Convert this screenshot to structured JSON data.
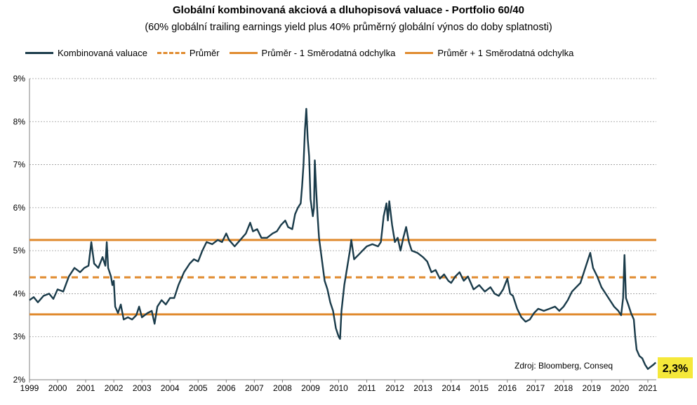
{
  "chart_data": {
    "type": "line",
    "title": "Globální kombinovaná akciová a dluhopisová valuace - Portfolio 60/40",
    "subtitle": "(60% globální trailing earnings yield plus 40% průměrný globální výnos do doby splatnosti)",
    "ylim": [
      2,
      9
    ],
    "xlim": [
      1999,
      2021.3
    ],
    "y_ticks": [
      2,
      3,
      4,
      5,
      6,
      7,
      8,
      9
    ],
    "y_tick_labels": [
      "2%",
      "3%",
      "4%",
      "5%",
      "6%",
      "7%",
      "8%",
      "9%"
    ],
    "x_ticks": [
      "1999",
      "2000",
      "2001",
      "2002",
      "2003",
      "2004",
      "2005",
      "2006",
      "2007",
      "2008",
      "2009",
      "2010",
      "2011",
      "2012",
      "2013",
      "2014",
      "2015",
      "2016",
      "2017",
      "2018",
      "2019",
      "2020",
      "2021"
    ],
    "grid": "horizontal-dashed",
    "legend_placement": "top",
    "legend": [
      {
        "label": "Kombinovaná valuace",
        "style": "solid-dark"
      },
      {
        "label": "Průměr",
        "style": "dashed-orange"
      },
      {
        "label": "Průměr - 1 Směrodatná odchylka",
        "style": "solid-orange"
      },
      {
        "label": "Průměr + 1 Směrodatná odchylka",
        "style": "solid-orange"
      }
    ],
    "series": [
      {
        "name": "Kombinovaná valuace",
        "color": "#1a3b4a",
        "points": [
          [
            1999.0,
            3.85
          ],
          [
            1999.15,
            3.92
          ],
          [
            1999.3,
            3.8
          ],
          [
            1999.5,
            3.95
          ],
          [
            1999.7,
            4.0
          ],
          [
            1999.85,
            3.88
          ],
          [
            2000.0,
            4.1
          ],
          [
            2000.2,
            4.05
          ],
          [
            2000.4,
            4.4
          ],
          [
            2000.6,
            4.6
          ],
          [
            2000.8,
            4.5
          ],
          [
            2000.95,
            4.6
          ],
          [
            2001.1,
            4.65
          ],
          [
            2001.2,
            5.2
          ],
          [
            2001.3,
            4.7
          ],
          [
            2001.45,
            4.6
          ],
          [
            2001.6,
            4.85
          ],
          [
            2001.7,
            4.65
          ],
          [
            2001.75,
            5.2
          ],
          [
            2001.8,
            4.6
          ],
          [
            2001.9,
            4.4
          ],
          [
            2001.95,
            4.2
          ],
          [
            2002.0,
            4.3
          ],
          [
            2002.05,
            3.7
          ],
          [
            2002.15,
            3.55
          ],
          [
            2002.25,
            3.75
          ],
          [
            2002.35,
            3.4
          ],
          [
            2002.5,
            3.45
          ],
          [
            2002.65,
            3.4
          ],
          [
            2002.8,
            3.5
          ],
          [
            2002.9,
            3.7
          ],
          [
            2003.0,
            3.45
          ],
          [
            2003.2,
            3.55
          ],
          [
            2003.35,
            3.6
          ],
          [
            2003.45,
            3.3
          ],
          [
            2003.55,
            3.7
          ],
          [
            2003.7,
            3.85
          ],
          [
            2003.85,
            3.75
          ],
          [
            2004.0,
            3.9
          ],
          [
            2004.15,
            3.9
          ],
          [
            2004.3,
            4.2
          ],
          [
            2004.5,
            4.5
          ],
          [
            2004.7,
            4.7
          ],
          [
            2004.85,
            4.8
          ],
          [
            2005.0,
            4.75
          ],
          [
            2005.15,
            5.0
          ],
          [
            2005.3,
            5.2
          ],
          [
            2005.5,
            5.15
          ],
          [
            2005.7,
            5.25
          ],
          [
            2005.85,
            5.2
          ],
          [
            2006.0,
            5.4
          ],
          [
            2006.1,
            5.25
          ],
          [
            2006.3,
            5.1
          ],
          [
            2006.5,
            5.25
          ],
          [
            2006.7,
            5.4
          ],
          [
            2006.85,
            5.65
          ],
          [
            2006.95,
            5.45
          ],
          [
            2007.1,
            5.5
          ],
          [
            2007.25,
            5.3
          ],
          [
            2007.45,
            5.3
          ],
          [
            2007.65,
            5.4
          ],
          [
            2007.8,
            5.45
          ],
          [
            2007.95,
            5.6
          ],
          [
            2008.1,
            5.7
          ],
          [
            2008.2,
            5.55
          ],
          [
            2008.35,
            5.5
          ],
          [
            2008.45,
            5.85
          ],
          [
            2008.55,
            6.0
          ],
          [
            2008.65,
            6.1
          ],
          [
            2008.7,
            6.5
          ],
          [
            2008.75,
            7.0
          ],
          [
            2008.8,
            7.8
          ],
          [
            2008.85,
            8.3
          ],
          [
            2008.9,
            7.6
          ],
          [
            2008.95,
            7.2
          ],
          [
            2009.0,
            6.2
          ],
          [
            2009.08,
            5.8
          ],
          [
            2009.12,
            6.0
          ],
          [
            2009.15,
            7.1
          ],
          [
            2009.2,
            6.4
          ],
          [
            2009.25,
            5.8
          ],
          [
            2009.3,
            5.3
          ],
          [
            2009.4,
            4.8
          ],
          [
            2009.5,
            4.3
          ],
          [
            2009.6,
            4.1
          ],
          [
            2009.7,
            3.8
          ],
          [
            2009.8,
            3.6
          ],
          [
            2009.9,
            3.2
          ],
          [
            2010.0,
            3.0
          ],
          [
            2010.05,
            2.95
          ],
          [
            2010.1,
            3.6
          ],
          [
            2010.2,
            4.2
          ],
          [
            2010.3,
            4.6
          ],
          [
            2010.4,
            5.0
          ],
          [
            2010.45,
            5.25
          ],
          [
            2010.55,
            4.8
          ],
          [
            2010.7,
            4.9
          ],
          [
            2010.85,
            5.0
          ],
          [
            2011.0,
            5.1
          ],
          [
            2011.2,
            5.15
          ],
          [
            2011.4,
            5.1
          ],
          [
            2011.5,
            5.2
          ],
          [
            2011.6,
            5.8
          ],
          [
            2011.7,
            6.1
          ],
          [
            2011.75,
            5.7
          ],
          [
            2011.8,
            6.15
          ],
          [
            2011.9,
            5.6
          ],
          [
            2012.0,
            5.2
          ],
          [
            2012.1,
            5.3
          ],
          [
            2012.2,
            5.0
          ],
          [
            2012.3,
            5.3
          ],
          [
            2012.4,
            5.55
          ],
          [
            2012.5,
            5.2
          ],
          [
            2012.6,
            5.0
          ],
          [
            2012.8,
            4.95
          ],
          [
            2013.0,
            4.85
          ],
          [
            2013.15,
            4.75
          ],
          [
            2013.3,
            4.5
          ],
          [
            2013.45,
            4.55
          ],
          [
            2013.6,
            4.35
          ],
          [
            2013.75,
            4.45
          ],
          [
            2013.9,
            4.3
          ],
          [
            2014.0,
            4.25
          ],
          [
            2014.15,
            4.4
          ],
          [
            2014.3,
            4.5
          ],
          [
            2014.45,
            4.3
          ],
          [
            2014.6,
            4.4
          ],
          [
            2014.8,
            4.1
          ],
          [
            2015.0,
            4.2
          ],
          [
            2015.2,
            4.05
          ],
          [
            2015.4,
            4.15
          ],
          [
            2015.55,
            4.0
          ],
          [
            2015.7,
            3.95
          ],
          [
            2015.85,
            4.1
          ],
          [
            2016.0,
            4.35
          ],
          [
            2016.1,
            4.0
          ],
          [
            2016.2,
            3.95
          ],
          [
            2016.35,
            3.65
          ],
          [
            2016.5,
            3.45
          ],
          [
            2016.65,
            3.35
          ],
          [
            2016.8,
            3.4
          ],
          [
            2016.95,
            3.55
          ],
          [
            2017.1,
            3.65
          ],
          [
            2017.3,
            3.6
          ],
          [
            2017.5,
            3.65
          ],
          [
            2017.7,
            3.7
          ],
          [
            2017.85,
            3.6
          ],
          [
            2018.0,
            3.7
          ],
          [
            2018.15,
            3.85
          ],
          [
            2018.3,
            4.05
          ],
          [
            2018.45,
            4.15
          ],
          [
            2018.6,
            4.25
          ],
          [
            2018.75,
            4.55
          ],
          [
            2018.85,
            4.75
          ],
          [
            2018.95,
            4.95
          ],
          [
            2019.05,
            4.6
          ],
          [
            2019.2,
            4.4
          ],
          [
            2019.35,
            4.15
          ],
          [
            2019.5,
            4.0
          ],
          [
            2019.65,
            3.85
          ],
          [
            2019.8,
            3.7
          ],
          [
            2019.95,
            3.6
          ],
          [
            2020.05,
            3.5
          ],
          [
            2020.12,
            3.9
          ],
          [
            2020.17,
            4.9
          ],
          [
            2020.22,
            3.9
          ],
          [
            2020.3,
            3.75
          ],
          [
            2020.4,
            3.55
          ],
          [
            2020.5,
            3.4
          ],
          [
            2020.55,
            3.0
          ],
          [
            2020.6,
            2.7
          ],
          [
            2020.7,
            2.55
          ],
          [
            2020.8,
            2.5
          ],
          [
            2020.9,
            2.35
          ],
          [
            2021.0,
            2.25
          ],
          [
            2021.1,
            2.3
          ],
          [
            2021.2,
            2.35
          ],
          [
            2021.28,
            2.4
          ]
        ]
      },
      {
        "name": "Průměr",
        "color": "#e08a2e",
        "style": "dashed",
        "constant": 4.38
      },
      {
        "name": "Průměr - 1 Směrodatná odchylka",
        "color": "#e08a2e",
        "style": "solid",
        "constant": 3.52
      },
      {
        "name": "Průměr + 1 Směrodatná odchylka",
        "color": "#e08a2e",
        "style": "solid",
        "constant": 5.25
      }
    ],
    "annotations": [
      {
        "text": "Zdroj: Bloomberg, Conseq"
      },
      {
        "text": "2,3%",
        "highlight": "#f5e83a"
      }
    ]
  }
}
